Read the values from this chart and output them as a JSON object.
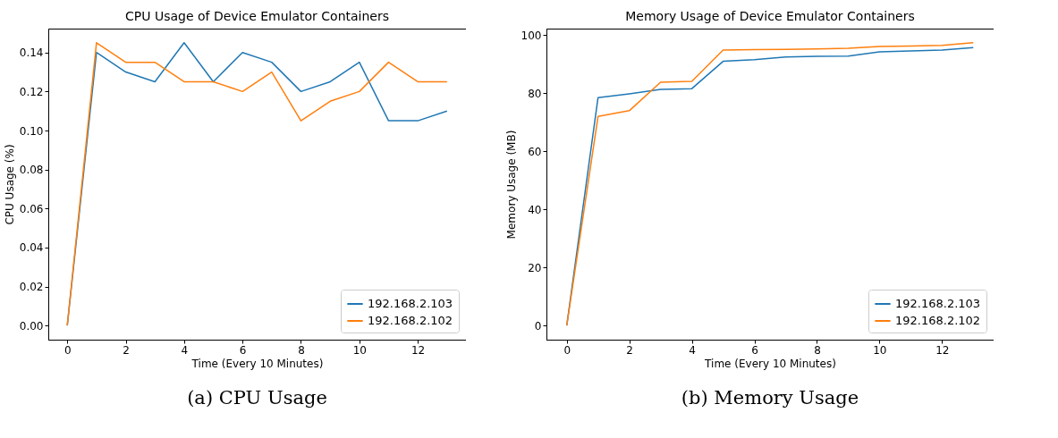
{
  "chart_data": [
    {
      "type": "line",
      "title": "CPU Usage of Device Emulator Containers",
      "xlabel": "Time (Every 10 Minutes)",
      "ylabel": "CPU Usage (%)",
      "annotations": [
        "(a) CPU Usage"
      ],
      "x": [
        0,
        1,
        2,
        3,
        4,
        5,
        6,
        7,
        8,
        9,
        10,
        11,
        12,
        13
      ],
      "series": [
        {
          "name": "192.168.2.103",
          "color": "#1f77b4",
          "values": [
            0,
            0.14,
            0.13,
            0.125,
            0.145,
            0.125,
            0.14,
            0.135,
            0.12,
            0.125,
            0.135,
            0.105,
            0.105,
            0.11
          ]
        },
        {
          "name": "192.168.2.102",
          "color": "#ff7f0e",
          "values": [
            0,
            0.145,
            0.135,
            0.135,
            0.125,
            0.125,
            0.12,
            0.13,
            0.105,
            0.115,
            0.12,
            0.135,
            0.125,
            0.125
          ]
        }
      ],
      "xlim": [
        -0.65,
        13.65
      ],
      "xticks": [
        0,
        2,
        4,
        6,
        8,
        10,
        12
      ],
      "ylim": [
        -0.00725,
        0.15225
      ],
      "yticks": [
        {
          "value": 0,
          "label": "0.00"
        },
        {
          "value": 0.02,
          "label": "0.02"
        },
        {
          "value": 0.04,
          "label": "0.04"
        },
        {
          "value": 0.06,
          "label": "0.06"
        },
        {
          "value": 0.08,
          "label": "0.08"
        },
        {
          "value": 0.1,
          "label": "0.10"
        },
        {
          "value": 0.12,
          "label": "0.12"
        },
        {
          "value": 0.14,
          "label": "0.14"
        }
      ],
      "grid": false,
      "legend": "bottom right"
    },
    {
      "type": "line",
      "title": "Memory Usage of Device Emulator Containers",
      "xlabel": "Time (Every 10 Minutes)",
      "ylabel": "Memory Usage (MB)",
      "annotations": [
        "(b) Memory Usage"
      ],
      "x": [
        0,
        1,
        2,
        3,
        4,
        5,
        6,
        7,
        8,
        9,
        10,
        11,
        12,
        13
      ],
      "series": [
        {
          "name": "192.168.2.103",
          "color": "#1f77b4",
          "values": [
            0,
            78.5,
            79.8,
            81.3,
            81.6,
            91,
            91.6,
            92.5,
            92.7,
            92.8,
            94.3,
            94.6,
            94.9,
            95.7
          ]
        },
        {
          "name": "192.168.2.102",
          "color": "#ff7f0e",
          "values": [
            0,
            72,
            74,
            83.8,
            84.1,
            94.9,
            95,
            95.1,
            95.3,
            95.5,
            96.1,
            96.3,
            96.5,
            97.4
          ]
        }
      ],
      "xlim": [
        -0.65,
        13.65
      ],
      "xticks": [
        0,
        2,
        4,
        6,
        8,
        10,
        12
      ],
      "ylim": [
        -4.87,
        102.27
      ],
      "yticks": [
        0,
        20,
        40,
        60,
        80,
        100
      ],
      "grid": false,
      "legend": "bottom right"
    }
  ]
}
